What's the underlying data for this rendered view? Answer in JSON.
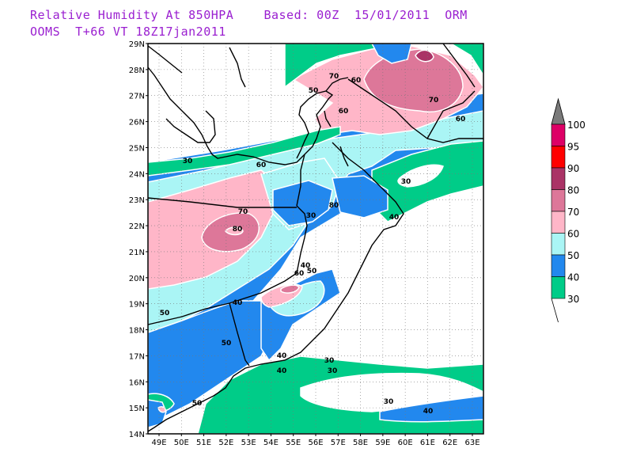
{
  "title_line1": "Relative Humidity At 850HPA    Based: 00Z  15/01/2011  ORM",
  "title_line2": "OOMS  T+66 VT 18Z17jan2011",
  "colors": {
    "c30": "#00cc88",
    "c40": "#2288ee",
    "c50": "#aaf5f5",
    "c60": "#ffb6c8",
    "c70": "#dd7799",
    "c80": "#aa3366",
    "c90": "#ff0000",
    "c95": "#dd0066",
    "c100": "#7a7a7a"
  },
  "map": {
    "lat_labels": [
      "29N",
      "28N",
      "27N",
      "26N",
      "25N",
      "24N",
      "23N",
      "22N",
      "21N",
      "20N",
      "19N",
      "18N",
      "17N",
      "16N",
      "15N",
      "14N"
    ],
    "lon_labels": [
      "49E",
      "50E",
      "51E",
      "52E",
      "53E",
      "54E",
      "55E",
      "56E",
      "57E",
      "58E",
      "59E",
      "60E",
      "61E",
      "62E",
      "63E"
    ]
  },
  "contour_labels": [
    "30",
    "60",
    "70",
    "60",
    "50",
    "80",
    "70",
    "60",
    "30",
    "60",
    "70",
    "80",
    "30",
    "40",
    "40",
    "30",
    "60",
    "50",
    "40",
    "50",
    "50",
    "40",
    "30",
    "40",
    "30",
    "40",
    "50"
  ],
  "legend": {
    "labels": [
      "100",
      "95",
      "90",
      "80",
      "70",
      "60",
      "50",
      "40",
      "30"
    ]
  }
}
